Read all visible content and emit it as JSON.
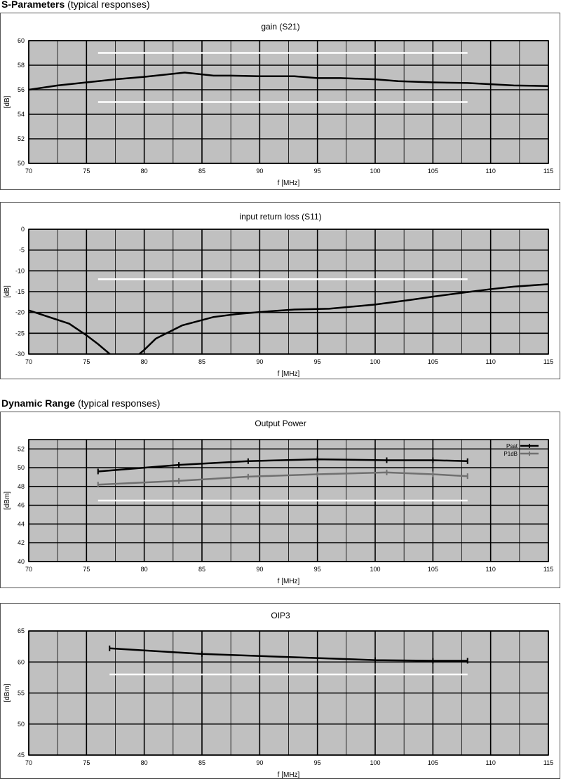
{
  "sections": [
    {
      "title": "S-Parameters",
      "subtitle": "(typical responses)"
    },
    {
      "title": "Dynamic Range",
      "subtitle": "(typical responses)"
    }
  ],
  "colors": {
    "plot_bg": "#c0c0c0",
    "grid": "#000000",
    "limit_line": "#ffffff",
    "series_primary": "#000000",
    "series_secondary": "#707070"
  },
  "chart_data": [
    {
      "type": "line",
      "title": "gain (S21)",
      "xlabel": "f [MHz]",
      "ylabel": "[dB]",
      "xlim": [
        70,
        115
      ],
      "ylim": [
        50,
        60
      ],
      "xticks": [
        70,
        75,
        80,
        85,
        90,
        95,
        100,
        105,
        110,
        115
      ],
      "yticks": [
        50,
        52,
        54,
        56,
        58,
        60
      ],
      "grid": true,
      "series": [
        {
          "color": "#000000",
          "markers": false,
          "x": [
            70,
            72.5,
            75,
            77.5,
            80,
            82,
            83.5,
            85,
            86,
            87.5,
            90,
            93,
            95,
            97,
            100,
            102,
            105,
            108,
            110,
            112,
            115
          ],
          "y": [
            56,
            56.35,
            56.6,
            56.85,
            57.05,
            57.25,
            57.4,
            57.25,
            57.15,
            57.15,
            57.1,
            57.1,
            56.95,
            56.95,
            56.85,
            56.7,
            56.6,
            56.55,
            56.45,
            56.35,
            56.3
          ]
        }
      ],
      "limits": [
        {
          "y": 59,
          "x": [
            76,
            108
          ]
        },
        {
          "y": 55,
          "x": [
            76,
            108
          ]
        }
      ]
    },
    {
      "type": "line",
      "title": "input return loss (S11)",
      "xlabel": "f [MHz]",
      "ylabel": "[dB]",
      "xlim": [
        70,
        115
      ],
      "ylim": [
        -30,
        0
      ],
      "xticks": [
        70,
        75,
        80,
        85,
        90,
        95,
        100,
        105,
        110,
        115
      ],
      "yticks": [
        -30,
        -25,
        -20,
        -15,
        -10,
        -5,
        0
      ],
      "grid": true,
      "series": [
        {
          "color": "#000000",
          "markers": false,
          "x": [
            70,
            73.5,
            75,
            76,
            78.3,
            80,
            81,
            83.3,
            86,
            88,
            90,
            93,
            96,
            100,
            103,
            105,
            108,
            110,
            112,
            115
          ],
          "y": [
            -19.5,
            -22.7,
            -25.5,
            -27.6,
            -33,
            -29,
            -26.3,
            -23.1,
            -21.1,
            -20.4,
            -19.9,
            -19.3,
            -19.1,
            -18.1,
            -17,
            -16.2,
            -15.1,
            -14.4,
            -13.8,
            -13.2
          ]
        }
      ],
      "limits": [
        {
          "y": -12,
          "x": [
            76,
            108
          ]
        }
      ]
    },
    {
      "type": "line",
      "title": "Output Power",
      "xlabel": "f [MHz]",
      "ylabel": "[dBm]",
      "xlim": [
        70,
        115
      ],
      "ylim": [
        40,
        53
      ],
      "xticks": [
        70,
        75,
        80,
        85,
        90,
        95,
        100,
        105,
        110,
        115
      ],
      "yticks": [
        40,
        42,
        44,
        46,
        48,
        50,
        52
      ],
      "grid": true,
      "legend": "top-right",
      "series": [
        {
          "name": "Psat",
          "color": "#000000",
          "markers": true,
          "x": [
            76,
            83,
            89,
            95,
            101,
            105,
            108
          ],
          "y": [
            49.6,
            50.3,
            50.7,
            50.9,
            50.8,
            50.8,
            50.7
          ]
        },
        {
          "name": "P1dB",
          "color": "#707070",
          "markers": true,
          "x": [
            76,
            83,
            89,
            95,
            101,
            105,
            108
          ],
          "y": [
            48.2,
            48.6,
            49.05,
            49.3,
            49.5,
            49.3,
            49.1
          ]
        }
      ],
      "limits": [
        {
          "y": 46.5,
          "x": [
            76,
            108
          ]
        }
      ]
    },
    {
      "type": "line",
      "title": "OIP3",
      "xlabel": "f [MHz]",
      "ylabel": "[dBm]",
      "xlim": [
        70,
        115
      ],
      "ylim": [
        45,
        65
      ],
      "xticks": [
        70,
        75,
        80,
        85,
        90,
        95,
        100,
        105,
        110,
        115
      ],
      "yticks": [
        45,
        50,
        55,
        60,
        65
      ],
      "grid": true,
      "series": [
        {
          "color": "#000000",
          "markers": true,
          "x": [
            77,
            85,
            100,
            105,
            108
          ],
          "y": [
            62.2,
            61.3,
            60.3,
            60.2,
            60.2
          ]
        }
      ],
      "limits": [
        {
          "y": 58,
          "x": [
            77,
            108
          ]
        }
      ]
    }
  ]
}
